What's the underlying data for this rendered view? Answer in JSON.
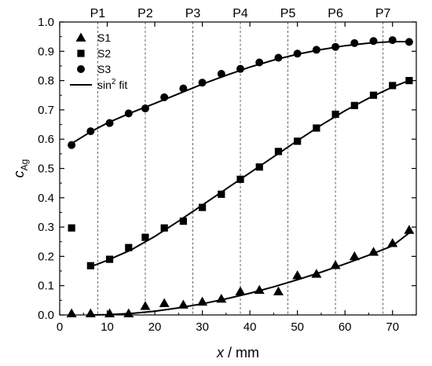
{
  "chart_data": {
    "type": "scatter",
    "xlabel_var": "x",
    "xlabel_unit": " / mm",
    "ylabel_var": "c",
    "ylabel_sub": "Ag",
    "xlim": [
      0,
      75
    ],
    "ylim": [
      0,
      1.0
    ],
    "xticks": [
      0,
      10,
      20,
      30,
      40,
      50,
      60,
      70
    ],
    "yticks": [
      0.0,
      0.1,
      0.2,
      0.3,
      0.4,
      0.5,
      0.6,
      0.7,
      0.8,
      0.9,
      1.0
    ],
    "ytick_labels": [
      "0.0",
      "0.1",
      "0.2",
      "0.3",
      "0.4",
      "0.5",
      "0.6",
      "0.7",
      "0.8",
      "0.9",
      "1.0"
    ],
    "position_markers": [
      {
        "label": "P1",
        "x": 8
      },
      {
        "label": "P2",
        "x": 18
      },
      {
        "label": "P3",
        "x": 28
      },
      {
        "label": "P4",
        "x": 38
      },
      {
        "label": "P5",
        "x": 48
      },
      {
        "label": "P6",
        "x": 58
      },
      {
        "label": "P7",
        "x": 68
      }
    ],
    "series": [
      {
        "name": "S1",
        "marker": "triangle",
        "x": [
          2.5,
          6.5,
          10.5,
          14.5,
          18.0,
          22.0,
          26.0,
          30.0,
          34.0,
          38.0,
          42.0,
          46.0,
          50.0,
          54.0,
          58.0,
          62.0,
          66.0,
          70.0,
          73.5
        ],
        "y": [
          0.005,
          0.005,
          0.005,
          0.005,
          0.03,
          0.04,
          0.035,
          0.045,
          0.055,
          0.08,
          0.085,
          0.08,
          0.135,
          0.14,
          0.17,
          0.2,
          0.215,
          0.245,
          0.29
        ]
      },
      {
        "name": "S2",
        "marker": "square",
        "x": [
          2.5,
          6.5,
          10.5,
          14.5,
          18.0,
          22.0,
          26.0,
          30.0,
          34.0,
          38.0,
          42.0,
          46.0,
          50.0,
          54.0,
          58.0,
          62.0,
          66.0,
          70.0,
          73.5
        ],
        "y": [
          0.297,
          0.168,
          0.19,
          0.23,
          0.265,
          0.297,
          0.32,
          0.367,
          0.412,
          0.463,
          0.505,
          0.558,
          0.593,
          0.638,
          0.685,
          0.715,
          0.75,
          0.783,
          0.8
        ]
      },
      {
        "name": "S3",
        "marker": "circle",
        "x": [
          2.5,
          6.5,
          10.5,
          14.5,
          18.0,
          22.0,
          26.0,
          30.0,
          34.0,
          38.0,
          42.0,
          46.0,
          50.0,
          54.0,
          58.0,
          62.0,
          66.0,
          70.0,
          73.5
        ],
        "y": [
          0.58,
          0.627,
          0.655,
          0.688,
          0.705,
          0.743,
          0.773,
          0.793,
          0.823,
          0.84,
          0.862,
          0.878,
          0.892,
          0.905,
          0.915,
          0.928,
          0.935,
          0.938,
          0.932
        ]
      }
    ],
    "fit_label": "sin",
    "fit_label_sup": "2",
    "fit_label_tail": " fit",
    "fits": [
      {
        "for": "S1",
        "x": [
          6.5,
          10,
          15,
          20,
          25,
          30,
          35,
          40,
          45,
          50,
          55,
          60,
          65,
          70,
          73.5
        ],
        "y": [
          0.0,
          0.001,
          0.005,
          0.013,
          0.024,
          0.038,
          0.055,
          0.074,
          0.096,
          0.12,
          0.146,
          0.174,
          0.204,
          0.236,
          0.28
        ]
      },
      {
        "for": "S2",
        "x": [
          6.5,
          10,
          15,
          20,
          25,
          30,
          35,
          40,
          45,
          50,
          55,
          60,
          65,
          70,
          73.5
        ],
        "y": [
          0.165,
          0.186,
          0.222,
          0.268,
          0.32,
          0.375,
          0.43,
          0.485,
          0.54,
          0.595,
          0.648,
          0.697,
          0.74,
          0.778,
          0.8
        ]
      },
      {
        "for": "S3",
        "x": [
          2.5,
          6.5,
          10,
          15,
          20,
          25,
          30,
          35,
          40,
          45,
          50,
          55,
          60,
          65,
          70,
          73.5
        ],
        "y": [
          0.585,
          0.625,
          0.655,
          0.69,
          0.722,
          0.755,
          0.788,
          0.818,
          0.846,
          0.87,
          0.89,
          0.906,
          0.919,
          0.928,
          0.933,
          0.933
        ]
      }
    ],
    "legend_position": "top-left",
    "grid": false
  }
}
